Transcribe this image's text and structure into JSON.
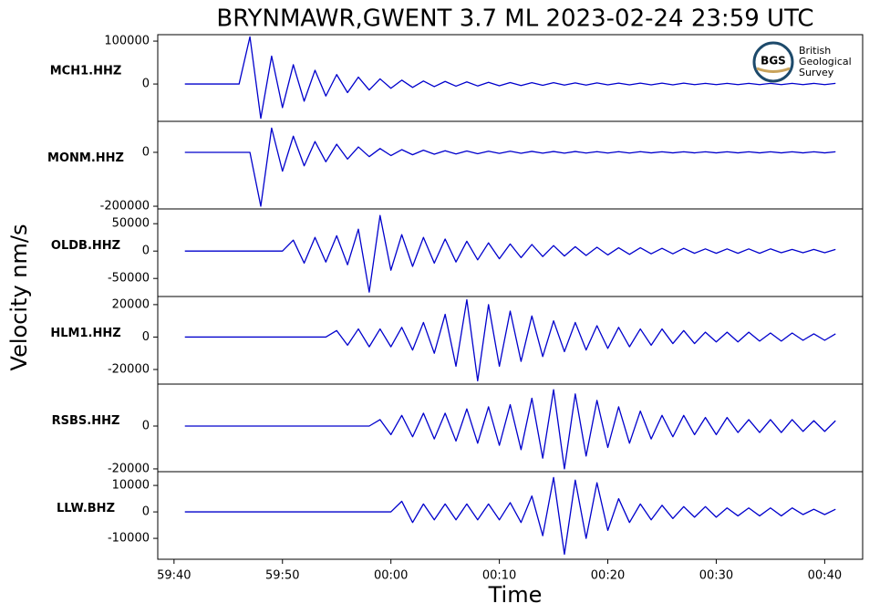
{
  "chart_data": {
    "type": "line",
    "title": "BRYNMAWR,GWENT 3.7 ML   2023-02-24 23:59 UTC",
    "xlabel": "Time",
    "ylabel": "Velocity nm/s",
    "logo": {
      "mark": "BGS",
      "lines": [
        "British",
        "Geological",
        "Survey"
      ]
    },
    "xlim": [
      38.5,
      103.5
    ],
    "xticks": [
      {
        "value": 40,
        "label": "59:40"
      },
      {
        "value": 50,
        "label": "59:50"
      },
      {
        "value": 60,
        "label": "00:00"
      },
      {
        "value": 70,
        "label": "00:10"
      },
      {
        "value": 80,
        "label": "00:20"
      },
      {
        "value": 90,
        "label": "00:30"
      },
      {
        "value": 100,
        "label": "00:40"
      }
    ],
    "x": [
      41,
      42,
      43,
      44,
      45,
      46,
      47,
      48,
      49,
      50,
      51,
      52,
      53,
      54,
      55,
      56,
      57,
      58,
      59,
      60,
      61,
      62,
      63,
      64,
      65,
      66,
      67,
      68,
      69,
      70,
      71,
      72,
      73,
      74,
      75,
      76,
      77,
      78,
      79,
      80,
      81,
      82,
      83,
      84,
      85,
      86,
      87,
      88,
      89,
      90,
      91,
      92,
      93,
      94,
      95,
      96,
      97,
      98,
      99,
      100,
      101
    ],
    "panels": [
      {
        "name": "MCH1.HHZ",
        "color": "#0000cc",
        "ylim": [
          -87000,
          115000
        ],
        "yticks": [
          0,
          100000
        ],
        "values": [
          0,
          0,
          0,
          0,
          0,
          0,
          110000,
          -80000,
          65000,
          -55000,
          45000,
          -40000,
          32000,
          -28000,
          22000,
          -20000,
          16000,
          -14000,
          12000,
          -10000,
          9000,
          -8000,
          7000,
          -6000,
          6000,
          -5000,
          5000,
          -4500,
          4000,
          -4000,
          3500,
          -3500,
          3000,
          -3000,
          3000,
          -2500,
          2500,
          -2500,
          2500,
          -2000,
          2000,
          -2000,
          2000,
          -2000,
          2000,
          -2000,
          2000,
          -1500,
          1500,
          -1500,
          1500,
          -1500,
          1500,
          -1500,
          1500,
          -1500,
          1500,
          -1500,
          1500,
          -1500,
          1500
        ]
      },
      {
        "name": "MONM.HHZ",
        "color": "#0000cc",
        "ylim": [
          -210000,
          115000
        ],
        "yticks": [
          -200000,
          0
        ],
        "values": [
          0,
          0,
          0,
          0,
          0,
          0,
          0,
          -200000,
          90000,
          -70000,
          60000,
          -50000,
          40000,
          -35000,
          30000,
          -25000,
          20000,
          -16000,
          14000,
          -12000,
          10000,
          -9000,
          8000,
          -7000,
          6000,
          -6000,
          5000,
          -5000,
          4000,
          -4000,
          4000,
          -3500,
          3500,
          -3000,
          3000,
          -3000,
          3000,
          -2500,
          2500,
          -2500,
          2500,
          -2500,
          2500,
          -2000,
          2000,
          -2000,
          2000,
          -2000,
          2000,
          -2000,
          2000,
          -2000,
          2000,
          -2000,
          2000,
          -2000,
          2000,
          -2000,
          2000,
          -2000,
          2000
        ]
      },
      {
        "name": "OLDB.HHZ",
        "color": "#0000cc",
        "ylim": [
          -83000,
          77000
        ],
        "yticks": [
          -50000,
          0,
          50000
        ],
        "values": [
          0,
          0,
          0,
          0,
          0,
          0,
          0,
          0,
          0,
          0,
          20000,
          -22000,
          25000,
          -20000,
          28000,
          -25000,
          40000,
          -75000,
          65000,
          -35000,
          30000,
          -28000,
          25000,
          -22000,
          22000,
          -20000,
          18000,
          -16000,
          15000,
          -14000,
          13000,
          -12000,
          12000,
          -10000,
          10000,
          -9000,
          8000,
          -8000,
          7000,
          -7000,
          6000,
          -6000,
          6000,
          -5000,
          5000,
          -5000,
          5000,
          -4000,
          4000,
          -4000,
          4000,
          -4000,
          4000,
          -4000,
          4000,
          -3000,
          3000,
          -3000,
          3000,
          -3000,
          3000
        ]
      },
      {
        "name": "HLM1.HHZ",
        "color": "#0000cc",
        "ylim": [
          -29000,
          25000
        ],
        "yticks": [
          -20000,
          0,
          20000
        ],
        "values": [
          0,
          0,
          0,
          0,
          0,
          0,
          0,
          0,
          0,
          0,
          0,
          0,
          0,
          0,
          4000,
          -5000,
          5000,
          -6000,
          5000,
          -6000,
          6000,
          -8000,
          9000,
          -10000,
          14000,
          -18000,
          23000,
          -27000,
          20000,
          -18000,
          16000,
          -15000,
          13000,
          -12000,
          10000,
          -9000,
          9000,
          -8000,
          7000,
          -7000,
          6000,
          -6000,
          5000,
          -5000,
          5000,
          -4000,
          4000,
          -4000,
          3000,
          -3000,
          3000,
          -3000,
          3000,
          -2500,
          2500,
          -2500,
          2500,
          -2000,
          2000,
          -2000,
          2000
        ]
      },
      {
        "name": "RSBS.HHZ",
        "color": "#0000cc",
        "ylim": [
          -21300,
          19600
        ],
        "yticks": [
          -20000,
          0
        ],
        "values": [
          0,
          0,
          0,
          0,
          0,
          0,
          0,
          0,
          0,
          0,
          0,
          0,
          0,
          0,
          0,
          0,
          0,
          0,
          3000,
          -4000,
          5000,
          -5000,
          6000,
          -6000,
          6000,
          -7000,
          8000,
          -8000,
          9000,
          -9000,
          10000,
          -11000,
          13000,
          -15000,
          17000,
          -20000,
          15000,
          -14000,
          12000,
          -10000,
          9000,
          -8000,
          7000,
          -6000,
          5000,
          -5000,
          5000,
          -4000,
          4000,
          -4000,
          4000,
          -3000,
          3000,
          -3000,
          3000,
          -3000,
          3000,
          -2500,
          2500,
          -2500,
          2500
        ]
      },
      {
        "name": "LLW.BHZ",
        "color": "#0000cc",
        "ylim": [
          -17900,
          15200
        ],
        "yticks": [
          -10000,
          0,
          10000
        ],
        "values": [
          0,
          0,
          0,
          0,
          0,
          0,
          0,
          0,
          0,
          0,
          0,
          0,
          0,
          0,
          0,
          0,
          0,
          0,
          0,
          0,
          4000,
          -4000,
          3000,
          -3000,
          3000,
          -3000,
          3000,
          -3000,
          3000,
          -3000,
          3500,
          -4000,
          6000,
          -9000,
          13000,
          -16000,
          12000,
          -10000,
          11000,
          -7000,
          5000,
          -4000,
          3000,
          -3000,
          2500,
          -2500,
          2000,
          -2000,
          2000,
          -2000,
          1500,
          -1500,
          1500,
          -1500,
          1500,
          -1500,
          1500,
          -1000,
          1000,
          -1000,
          1000
        ]
      }
    ]
  }
}
